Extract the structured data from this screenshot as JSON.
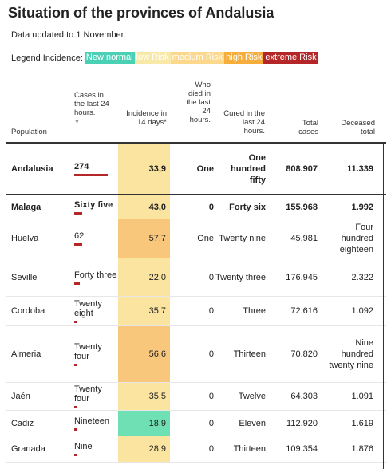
{
  "title": "Situation of the provinces of Andalusia",
  "updated": "Data updated to 1 November.",
  "legend": {
    "label": "Legend Incidence:",
    "items": [
      {
        "label": "New normal",
        "color": "#4ad0b4"
      },
      {
        "label": "low Risk",
        "color": "#f8e9a8"
      },
      {
        "label": "medium Risk",
        "color": "#fbd88b"
      },
      {
        "label": "high Risk",
        "color": "#f6ad3a"
      },
      {
        "label": "extreme Risk",
        "color": "#b52628"
      }
    ]
  },
  "headers": {
    "population": "Population",
    "cases": "Cases in the last 24 hours.",
    "cases_sort": "▼",
    "incidence": "Incidence in 14 days*",
    "died": "Who died in the last 24 hours.",
    "cured": "Cured in the last 24 hours.",
    "total": "Total cases",
    "deceased": "Deceased total"
  },
  "rows": [
    {
      "name": "Andalusia",
      "cases": "274",
      "cases_value": 274,
      "incidence": "33,9",
      "inc_color": "#fbe3a0",
      "died": "One",
      "cured": "One hundred fifty",
      "total": "808.907",
      "deceased": "11.339",
      "bold": true
    },
    {
      "name": "Malaga",
      "cases": "Sixty five",
      "cases_value": 65,
      "incidence": "43,0",
      "inc_color": "#fbe3a0",
      "died": "0",
      "cured": "Forty six",
      "total": "155.968",
      "deceased": "1.992",
      "bold": true
    },
    {
      "name": "Huelva",
      "cases": "62",
      "cases_value": 62,
      "incidence": "57,7",
      "inc_color": "#f9c77c",
      "died": "One",
      "cured": "Twenty nine",
      "total": "45.981",
      "deceased": "Four hundred eighteen",
      "bold": false
    },
    {
      "name": "Seville",
      "cases": "Forty three",
      "cases_value": 43,
      "incidence": "22,0",
      "inc_color": "#fbe3a0",
      "died": "0",
      "cured": "Twenty three",
      "total": "176.945",
      "deceased": "2.322",
      "bold": false
    },
    {
      "name": "Cordoba",
      "cases": "Twenty eight",
      "cases_value": 28,
      "incidence": "35,7",
      "inc_color": "#fbe3a0",
      "died": "0",
      "cured": "Three",
      "total": "72.616",
      "deceased": "1.092",
      "bold": false
    },
    {
      "name": "Almeria",
      "cases": "Twenty four",
      "cases_value": 24,
      "incidence": "56,6",
      "inc_color": "#f9c77c",
      "died": "0",
      "cured": "Thirteen",
      "total": "70.820",
      "deceased": "Nine hundred twenty nine",
      "bold": false
    },
    {
      "name": "Jaén",
      "cases": "Twenty four",
      "cases_value": 24,
      "incidence": "35,5",
      "inc_color": "#fbe3a0",
      "died": "0",
      "cured": "Twelve",
      "total": "64.303",
      "deceased": "1.091",
      "bold": false
    },
    {
      "name": "Cadiz",
      "cases": "Nineteen",
      "cases_value": 19,
      "incidence": "18,9",
      "inc_color": "#6fe0b4",
      "died": "0",
      "cured": "Eleven",
      "total": "112.920",
      "deceased": "1.619",
      "bold": false
    },
    {
      "name": "Granada",
      "cases": "Nine",
      "cases_value": 9,
      "incidence": "28,9",
      "inc_color": "#fbe3a0",
      "died": "0",
      "cured": "Thirteen",
      "total": "109.354",
      "deceased": "1.876",
      "bold": false
    }
  ]
}
